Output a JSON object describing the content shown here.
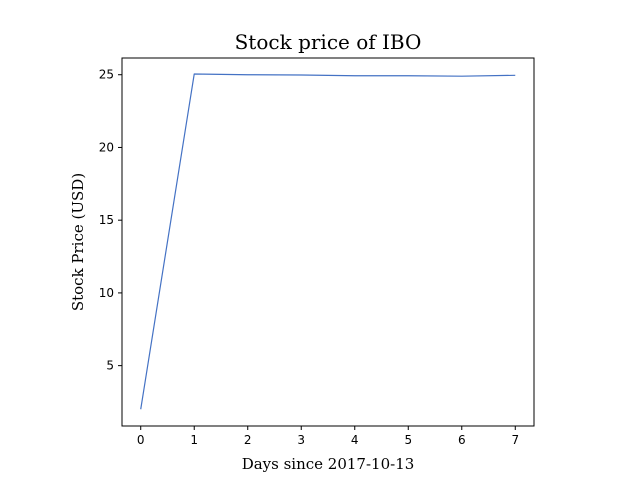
{
  "chart_data": {
    "type": "line",
    "title": "Stock price of IBO",
    "xlabel": "Days since 2017-10-13",
    "ylabel": "Stock Price (USD)",
    "x": [
      0,
      1,
      2,
      3,
      4,
      5,
      6,
      7
    ],
    "series": [
      {
        "values": [
          2.0,
          25.05,
          25.0,
          24.98,
          24.93,
          24.93,
          24.9,
          24.96
        ],
        "color": "#4472c4"
      }
    ],
    "xlim": [
      -0.35,
      7.35
    ],
    "ylim": [
      0.85,
      26.15
    ],
    "xticks": [
      0,
      1,
      2,
      3,
      4,
      5,
      6,
      7
    ],
    "yticks": [
      5,
      10,
      15,
      20,
      25
    ],
    "grid": false,
    "legend": "none"
  }
}
